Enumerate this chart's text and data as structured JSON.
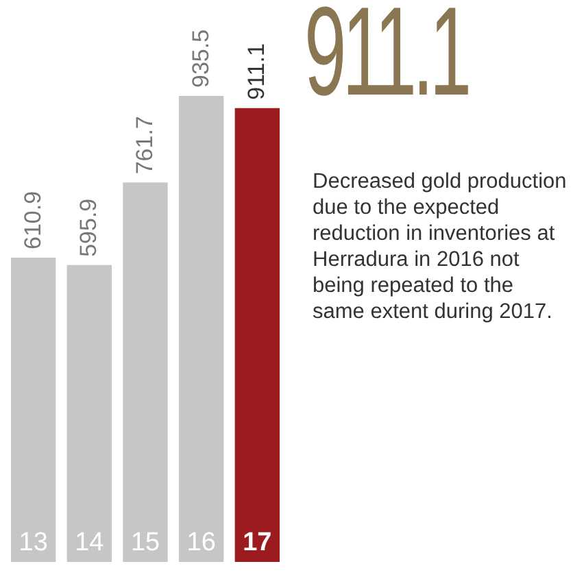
{
  "chart_data": {
    "type": "bar",
    "title": "911.1",
    "annotations": [
      "Decreased gold production due to the expected reduction in inventories at Herradura in 2016 not being repeated to the same extent during 2017."
    ],
    "categories": [
      "13",
      "14",
      "15",
      "16",
      "17"
    ],
    "values": [
      610.9,
      595.9,
      761.7,
      935.5,
      911.1
    ],
    "colors": [
      "#c6c6c6",
      "#c6c6c6",
      "#c6c6c6",
      "#c6c6c6",
      "#9b1b1f"
    ],
    "data_labels": true
  }
}
